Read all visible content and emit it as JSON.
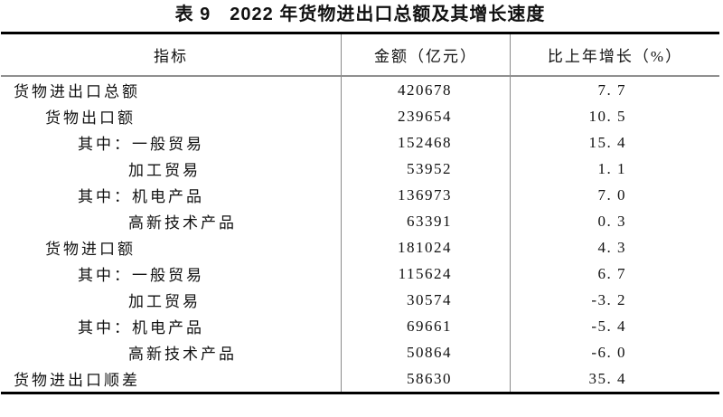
{
  "title": "表 9　2022 年货物进出口总额及其增长速度",
  "table": {
    "headers": [
      "指标",
      "金额（亿元）",
      "比上年增长（%）"
    ],
    "rows": [
      {
        "indicator": "货物进出口总额",
        "indent": 0,
        "amount": "420678",
        "growth": "7. 7"
      },
      {
        "indicator": "货物出口额",
        "indent": 1,
        "amount": "239654",
        "growth": "10. 5"
      },
      {
        "indicator": "其中：一般贸易",
        "indent": 2,
        "amount": "152468",
        "growth": "15. 4"
      },
      {
        "indicator": "加工贸易",
        "indent": 3,
        "amount": "53952",
        "growth": "1. 1"
      },
      {
        "indicator": "其中：机电产品",
        "indent": 2,
        "amount": "136973",
        "growth": "7. 0"
      },
      {
        "indicator": "高新技术产品",
        "indent": 3,
        "amount": "63391",
        "growth": "0. 3"
      },
      {
        "indicator": "货物进口额",
        "indent": 1,
        "amount": "181024",
        "growth": "4. 3"
      },
      {
        "indicator": "其中：一般贸易",
        "indent": 2,
        "amount": "115624",
        "growth": "6. 7"
      },
      {
        "indicator": "加工贸易",
        "indent": 3,
        "amount": "30574",
        "growth": "-3. 2"
      },
      {
        "indicator": "其中：机电产品",
        "indent": 2,
        "amount": "69661",
        "growth": "-5. 4"
      },
      {
        "indicator": "高新技术产品",
        "indent": 3,
        "amount": "50864",
        "growth": "-6. 0"
      },
      {
        "indicator": "货物进出口顺差",
        "indent": 0,
        "amount": "58630",
        "growth": "35. 4"
      }
    ]
  },
  "colors": {
    "text": "#111111",
    "thick_rule": "#000000",
    "thin_rule": "#8a8a8a",
    "background": "#ffffff"
  }
}
